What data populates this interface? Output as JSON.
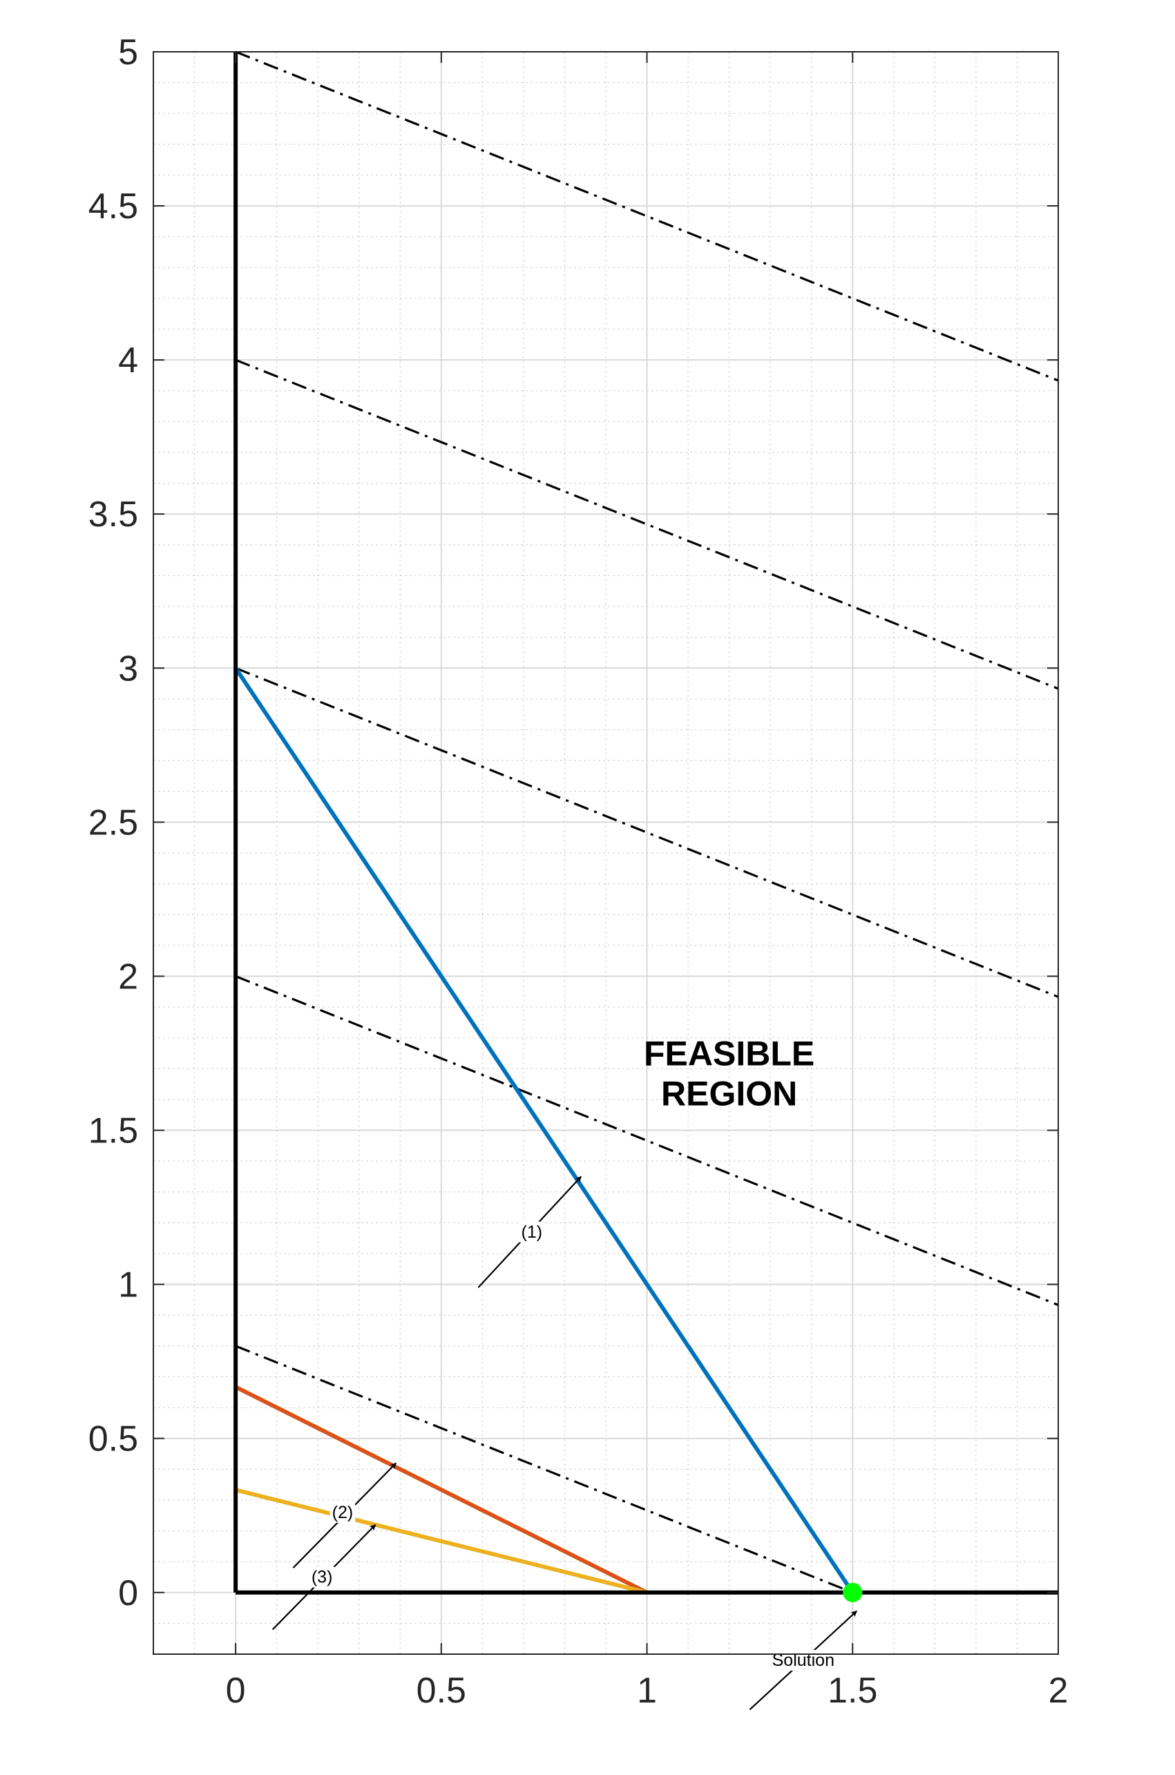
{
  "chart_data": {
    "type": "line",
    "title": "",
    "xlabel": "",
    "ylabel": "",
    "xlim": [
      -0.2,
      2
    ],
    "ylim": [
      -0.2,
      5
    ],
    "xticks": [
      0,
      0.5,
      1,
      1.5,
      2
    ],
    "xtick_labels": [
      "0",
      "0.5",
      "1",
      "1.5",
      "2"
    ],
    "yticks": [
      0,
      0.5,
      1,
      1.5,
      2,
      2.5,
      3,
      3.5,
      4,
      4.5,
      5
    ],
    "ytick_labels": [
      "0",
      "0.5",
      "1",
      "1.5",
      "2",
      "2.5",
      "3",
      "3.5",
      "4",
      "4.5",
      "5"
    ],
    "grid": true,
    "minor_grid": true,
    "axes_lines": [
      {
        "points": [
          [
            0,
            0
          ],
          [
            0,
            5
          ]
        ],
        "color": "#000000"
      },
      {
        "points": [
          [
            0,
            0
          ],
          [
            2,
            0
          ]
        ],
        "color": "#000000"
      }
    ],
    "series": [
      {
        "points": [
          [
            0,
            3
          ],
          [
            1.5,
            0
          ]
        ],
        "color": "#0072BD",
        "style": "solid"
      },
      {
        "points": [
          [
            0,
            0.667
          ],
          [
            1,
            0
          ]
        ],
        "color": "#D95319",
        "style": "solid"
      },
      {
        "points": [
          [
            0,
            0.333
          ],
          [
            1,
            0
          ]
        ],
        "color": "#EDB120",
        "style": "solid"
      }
    ],
    "objective_lines": [
      {
        "points": [
          [
            0,
            5
          ],
          [
            2,
            3.933
          ]
        ]
      },
      {
        "points": [
          [
            0,
            4
          ],
          [
            2,
            2.933
          ]
        ]
      },
      {
        "points": [
          [
            0,
            3
          ],
          [
            2,
            1.933
          ]
        ]
      },
      {
        "points": [
          [
            0,
            2
          ],
          [
            2,
            0.933
          ]
        ]
      },
      {
        "points": [
          [
            0,
            0.8
          ],
          [
            1.5,
            0
          ]
        ]
      }
    ],
    "solution_point": {
      "x": 1.5,
      "y": 0,
      "color": "#00FF00"
    },
    "region_label": [
      "FEASIBLE",
      "REGION"
    ],
    "region_label_pos": [
      1.2,
      1.67
    ],
    "annotations": [
      {
        "text": "(1)",
        "from": [
          0.59,
          0.99
        ],
        "to": [
          0.84,
          1.35
        ],
        "label_at": [
          0.72,
          1.17
        ]
      },
      {
        "text": "(2)",
        "from": [
          0.14,
          0.08
        ],
        "to": [
          0.39,
          0.42
        ],
        "label_at": [
          0.26,
          0.26
        ]
      },
      {
        "text": "(3)",
        "from": [
          0.09,
          -0.12
        ],
        "to": [
          0.34,
          0.22
        ],
        "label_at": [
          0.21,
          0.05
        ]
      },
      {
        "text": "Solution",
        "from": [
          1.25,
          -0.38
        ],
        "to": [
          1.51,
          -0.06
        ],
        "label_at": [
          1.38,
          -0.22
        ]
      }
    ]
  }
}
